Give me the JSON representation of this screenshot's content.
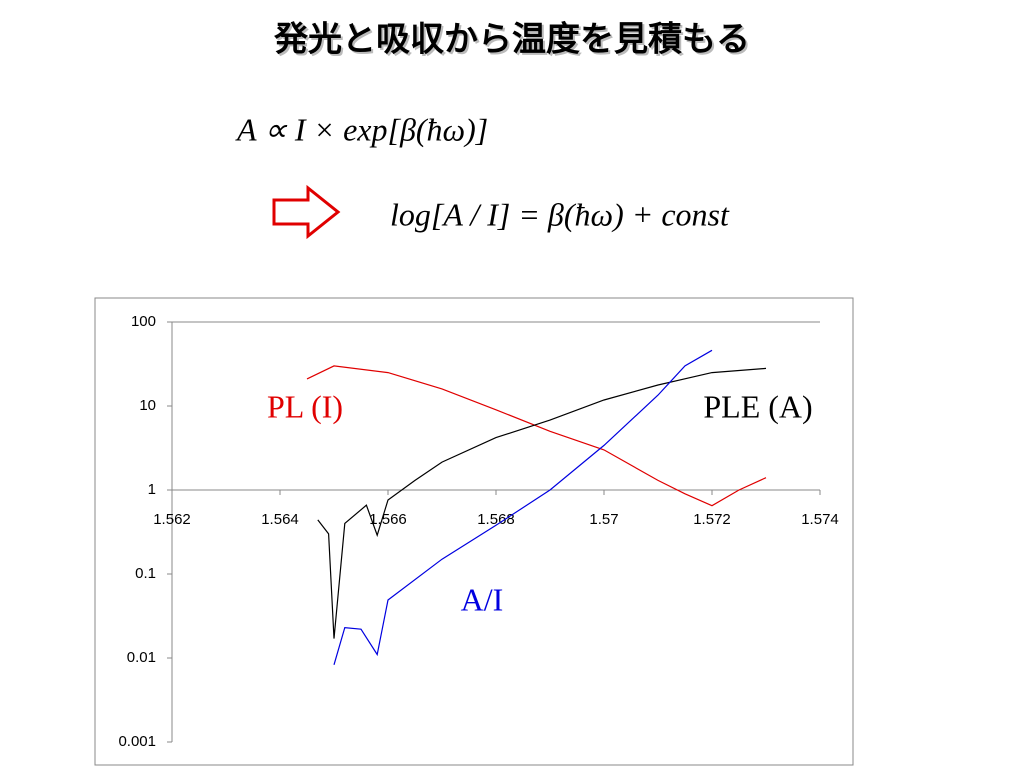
{
  "title": "発光と吸収から温度を見積もる",
  "equations": [
    "A ∝ I × exp[β(ħω)]",
    "log[A / I] = β(ħω) + const"
  ],
  "chart_data": {
    "type": "line",
    "xlim": [
      1.562,
      1.574
    ],
    "xticks": [
      1.562,
      1.564,
      1.566,
      1.568,
      1.57,
      1.572,
      1.574
    ],
    "ylim": [
      0.001,
      100
    ],
    "yticks": [
      0.001,
      0.01,
      0.1,
      1,
      10,
      100
    ],
    "log_y": true,
    "x_axis_crossing": 1,
    "series": [
      {
        "name": "PL (I)",
        "color": "#e00000",
        "x": [
          1.5645,
          1.565,
          1.566,
          1.567,
          1.568,
          1.569,
          1.57,
          1.571,
          1.5715,
          1.572,
          1.5725,
          1.573
        ],
        "values": [
          21,
          30,
          25,
          16,
          9,
          5,
          3,
          1.3,
          0.9,
          0.65,
          1,
          1.4
        ]
      },
      {
        "name": "PLE (A)",
        "color": "#000000",
        "x": [
          1.5647,
          1.5649,
          1.565,
          1.5652,
          1.5656,
          1.5658,
          1.566,
          1.5665,
          1.567,
          1.568,
          1.569,
          1.57,
          1.571,
          1.572,
          1.573
        ],
        "values": [
          0.44,
          0.3,
          0.017,
          0.4,
          0.66,
          0.29,
          0.76,
          1.3,
          2.15,
          4.2,
          6.8,
          11.8,
          17.8,
          25,
          28
        ]
      },
      {
        "name": "A/I",
        "color": "#0000e0",
        "x": [
          1.565,
          1.5652,
          1.5655,
          1.5658,
          1.566,
          1.567,
          1.568,
          1.569,
          1.57,
          1.571,
          1.5715,
          1.572
        ],
        "values": [
          0.0083,
          0.023,
          0.022,
          0.011,
          0.049,
          0.15,
          0.38,
          1,
          3.4,
          13.5,
          30,
          46
        ]
      }
    ]
  }
}
